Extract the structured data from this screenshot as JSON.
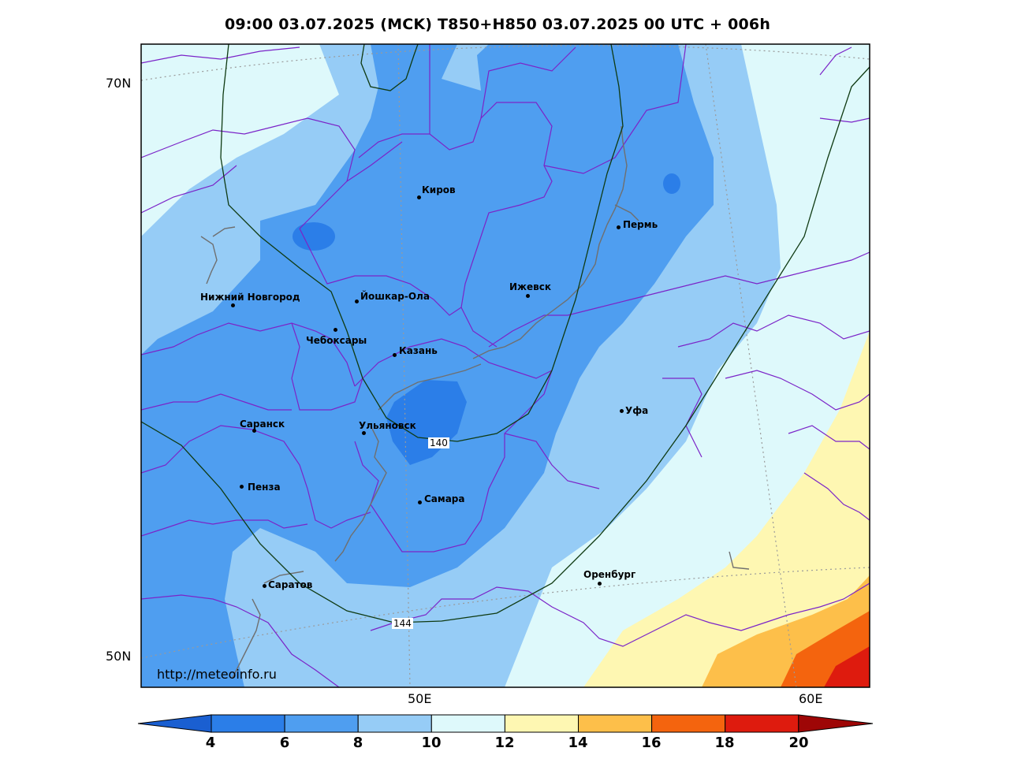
{
  "title": "09:00 03.07.2025 (MCK) T850+H850 03.07.2025 00 UTC + 006h",
  "credit": "http://meteoinfo.ru",
  "lat_labels": [
    "70N",
    "50N"
  ],
  "lon_labels": [
    "50E",
    "60E"
  ],
  "cities": [
    {
      "name": "Киров"
    },
    {
      "name": "Пермь"
    },
    {
      "name": "Нижний Новгород"
    },
    {
      "name": "Йошкар-Ола"
    },
    {
      "name": "Ижевск"
    },
    {
      "name": "Чебоксары"
    },
    {
      "name": "Казань"
    },
    {
      "name": "Уфа"
    },
    {
      "name": "Саранск"
    },
    {
      "name": "Ульяновск"
    },
    {
      "name": "Пенза"
    },
    {
      "name": "Самара"
    },
    {
      "name": "Оренбург"
    },
    {
      "name": "Саратов"
    }
  ],
  "contour_labels": [
    "140",
    "144"
  ],
  "colorbar": {
    "ticks": [
      "4",
      "6",
      "8",
      "10",
      "12",
      "14",
      "16",
      "18",
      "20"
    ],
    "colors": [
      "#1a5fd1",
      "#2b7ee8",
      "#4f9ef0",
      "#96ccf6",
      "#def9fb",
      "#fef7b2",
      "#fdbf4a",
      "#f4640e",
      "#de1b0e",
      "#9e0606"
    ]
  }
}
